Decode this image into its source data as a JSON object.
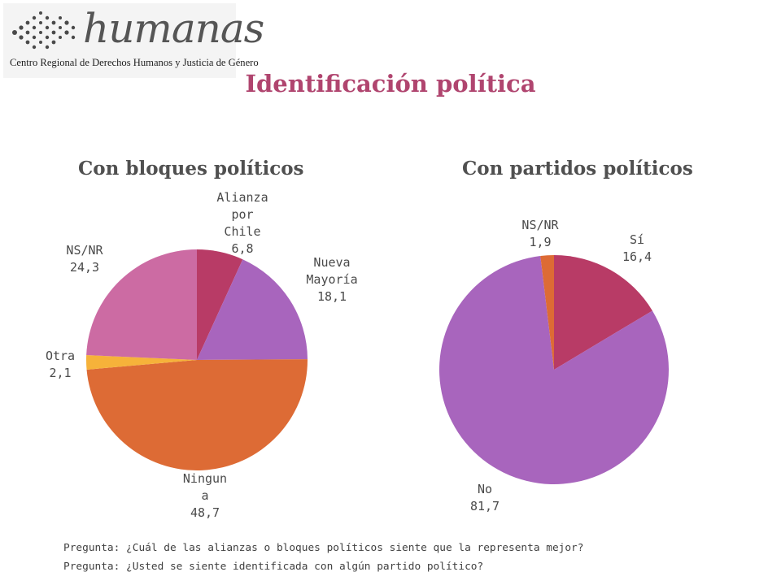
{
  "logo": {
    "wordmark": "humanas",
    "tagline": "Centro Regional de Derechos Humanos y Justicia de Género"
  },
  "title": "Identificación política",
  "chart_data": [
    {
      "type": "pie",
      "title": "Con bloques políticos",
      "start_angle_deg": 0,
      "direction": "clockwise",
      "slices": [
        {
          "label": "Alianza por Chile",
          "label_lines": [
            "Alianza",
            "por",
            "Chile"
          ],
          "value": 6.8,
          "value_text": "6,8",
          "color": "#b83b66"
        },
        {
          "label": "Nueva Mayoría",
          "label_lines": [
            "Nueva",
            "Mayoría"
          ],
          "value": 18.1,
          "value_text": "18,1",
          "color": "#a865bd"
        },
        {
          "label": "Ninguna",
          "label_lines": [
            "Ningun",
            "a"
          ],
          "value": 48.7,
          "value_text": "48,7",
          "color": "#dd6b35"
        },
        {
          "label": "Otra",
          "label_lines": [
            "Otra"
          ],
          "value": 2.1,
          "value_text": "2,1",
          "color": "#f6b23a"
        },
        {
          "label": "NS/NR",
          "label_lines": [
            "NS/NR"
          ],
          "value": 24.3,
          "value_text": "24,3",
          "color": "#cc6ba3"
        }
      ]
    },
    {
      "type": "pie",
      "title": "Con partidos políticos",
      "start_angle_deg": 0,
      "direction": "clockwise",
      "slices": [
        {
          "label": "Sí",
          "label_lines": [
            "Sí"
          ],
          "value": 16.4,
          "value_text": "16,4",
          "color": "#b83b66"
        },
        {
          "label": "No",
          "label_lines": [
            "No"
          ],
          "value": 81.7,
          "value_text": "81,7",
          "color": "#a865bd"
        },
        {
          "label": "NS/NR",
          "label_lines": [
            "NS/NR"
          ],
          "value": 1.9,
          "value_text": "1,9",
          "color": "#dd6b35"
        }
      ]
    }
  ],
  "notes": [
    "Pregunta: ¿Cuál de las alianzas o bloques políticos siente que la representa mejor?",
    "Pregunta: ¿Usted se siente identificada con algún partido político?"
  ]
}
